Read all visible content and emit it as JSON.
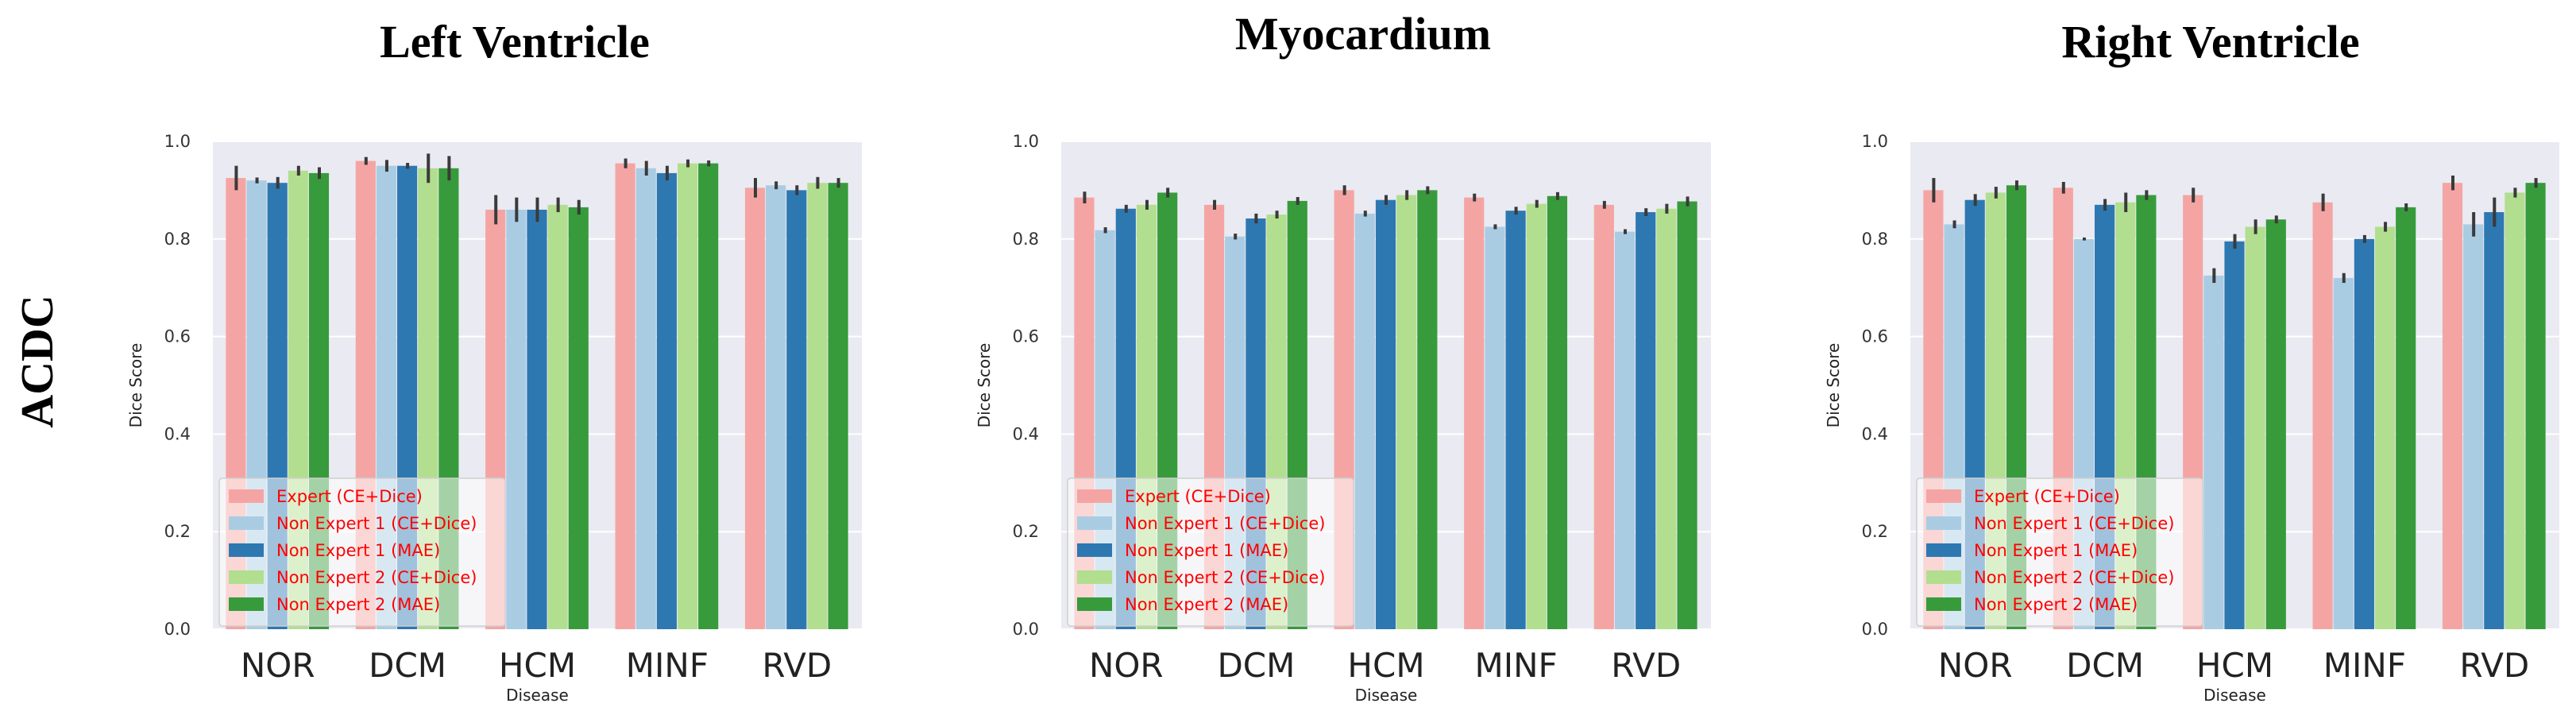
{
  "figure": {
    "row_label": "ACDC",
    "legend_text_color": "#ff0000",
    "plot_background": "#eaeaf2",
    "error_bar_color": "#3a3a3a"
  },
  "series_meta": [
    {
      "name": "Expert (CE+Dice)",
      "color": "#f4a5a3"
    },
    {
      "name": "Non Expert 1 (CE+Dice)",
      "color": "#a9cce3"
    },
    {
      "name": "Non Expert 1 (MAE)",
      "color": "#2e78b1"
    },
    {
      "name": "Non Expert 2 (CE+Dice)",
      "color": "#b2de8f"
    },
    {
      "name": "Non Expert 2 (MAE)",
      "color": "#379b3b"
    }
  ],
  "chart_data": [
    {
      "type": "bar",
      "title": "Left Ventricle",
      "xlabel": "Disease",
      "ylabel": "Dice Score",
      "ylim": [
        0,
        1.0
      ],
      "yticks": [
        "0.0",
        "0.2",
        "0.4",
        "0.6",
        "0.8",
        "1.0"
      ],
      "legend_position": "lower-left",
      "categories": [
        "NOR",
        "DCM",
        "HCM",
        "MINF",
        "RVD"
      ],
      "series": [
        {
          "name": "Expert (CE+Dice)",
          "values": [
            0.925,
            0.96,
            0.86,
            0.955,
            0.905
          ],
          "errors": [
            0.025,
            0.008,
            0.03,
            0.01,
            0.02
          ]
        },
        {
          "name": "Non Expert 1 (CE+Dice)",
          "values": [
            0.92,
            0.95,
            0.86,
            0.945,
            0.91
          ],
          "errors": [
            0.006,
            0.012,
            0.025,
            0.015,
            0.008
          ]
        },
        {
          "name": "Non Expert 1 (MAE)",
          "values": [
            0.915,
            0.95,
            0.86,
            0.935,
            0.9
          ],
          "errors": [
            0.012,
            0.006,
            0.025,
            0.015,
            0.01
          ]
        },
        {
          "name": "Non Expert 2 (CE+Dice)",
          "values": [
            0.94,
            0.945,
            0.87,
            0.955,
            0.915
          ],
          "errors": [
            0.01,
            0.03,
            0.015,
            0.008,
            0.012
          ]
        },
        {
          "name": "Non Expert 2 (MAE)",
          "values": [
            0.935,
            0.945,
            0.865,
            0.955,
            0.915
          ],
          "errors": [
            0.012,
            0.025,
            0.015,
            0.006,
            0.01
          ]
        }
      ]
    },
    {
      "type": "bar",
      "title": "Myocardium",
      "xlabel": "Disease",
      "ylabel": "Dice Score",
      "ylim": [
        0,
        1.0
      ],
      "yticks": [
        "0.0",
        "0.2",
        "0.4",
        "0.6",
        "0.8",
        "1.0"
      ],
      "legend_position": "lower-left",
      "categories": [
        "NOR",
        "DCM",
        "HCM",
        "MINF",
        "RVD"
      ],
      "series": [
        {
          "name": "Expert (CE+Dice)",
          "values": [
            0.885,
            0.87,
            0.9,
            0.885,
            0.87
          ],
          "errors": [
            0.012,
            0.01,
            0.01,
            0.008,
            0.008
          ]
        },
        {
          "name": "Non Expert 1 (CE+Dice)",
          "values": [
            0.818,
            0.805,
            0.852,
            0.825,
            0.815
          ],
          "errors": [
            0.006,
            0.006,
            0.006,
            0.005,
            0.005
          ]
        },
        {
          "name": "Non Expert 1 (MAE)",
          "values": [
            0.862,
            0.842,
            0.88,
            0.858,
            0.855
          ],
          "errors": [
            0.008,
            0.01,
            0.01,
            0.008,
            0.008
          ]
        },
        {
          "name": "Non Expert 2 (CE+Dice)",
          "values": [
            0.87,
            0.85,
            0.89,
            0.872,
            0.862
          ],
          "errors": [
            0.01,
            0.008,
            0.01,
            0.008,
            0.01
          ]
        },
        {
          "name": "Non Expert 2 (MAE)",
          "values": [
            0.895,
            0.878,
            0.9,
            0.888,
            0.877
          ],
          "errors": [
            0.01,
            0.008,
            0.008,
            0.008,
            0.01
          ]
        }
      ]
    },
    {
      "type": "bar",
      "title": "Right Ventricle",
      "xlabel": "Disease",
      "ylabel": "Dice Score",
      "ylim": [
        0,
        1.0
      ],
      "yticks": [
        "0.0",
        "0.2",
        "0.4",
        "0.6",
        "0.8",
        "1.0"
      ],
      "legend_position": "lower-left",
      "categories": [
        "NOR",
        "DCM",
        "HCM",
        "MINF",
        "RVD"
      ],
      "series": [
        {
          "name": "Expert (CE+Dice)",
          "values": [
            0.9,
            0.905,
            0.89,
            0.875,
            0.915
          ],
          "errors": [
            0.025,
            0.012,
            0.015,
            0.018,
            0.015
          ]
        },
        {
          "name": "Non Expert 1 (CE+Dice)",
          "values": [
            0.83,
            0.8,
            0.725,
            0.72,
            0.83
          ],
          "errors": [
            0.008,
            0.003,
            0.015,
            0.01,
            0.025
          ]
        },
        {
          "name": "Non Expert 1 (MAE)",
          "values": [
            0.88,
            0.87,
            0.795,
            0.8,
            0.855
          ],
          "errors": [
            0.012,
            0.012,
            0.015,
            0.008,
            0.03
          ]
        },
        {
          "name": "Non Expert 2 (CE+Dice)",
          "values": [
            0.895,
            0.875,
            0.825,
            0.825,
            0.895
          ],
          "errors": [
            0.012,
            0.02,
            0.015,
            0.01,
            0.01
          ]
        },
        {
          "name": "Non Expert 2 (MAE)",
          "values": [
            0.91,
            0.89,
            0.84,
            0.865,
            0.915
          ],
          "errors": [
            0.01,
            0.01,
            0.008,
            0.008,
            0.01
          ]
        }
      ]
    }
  ]
}
